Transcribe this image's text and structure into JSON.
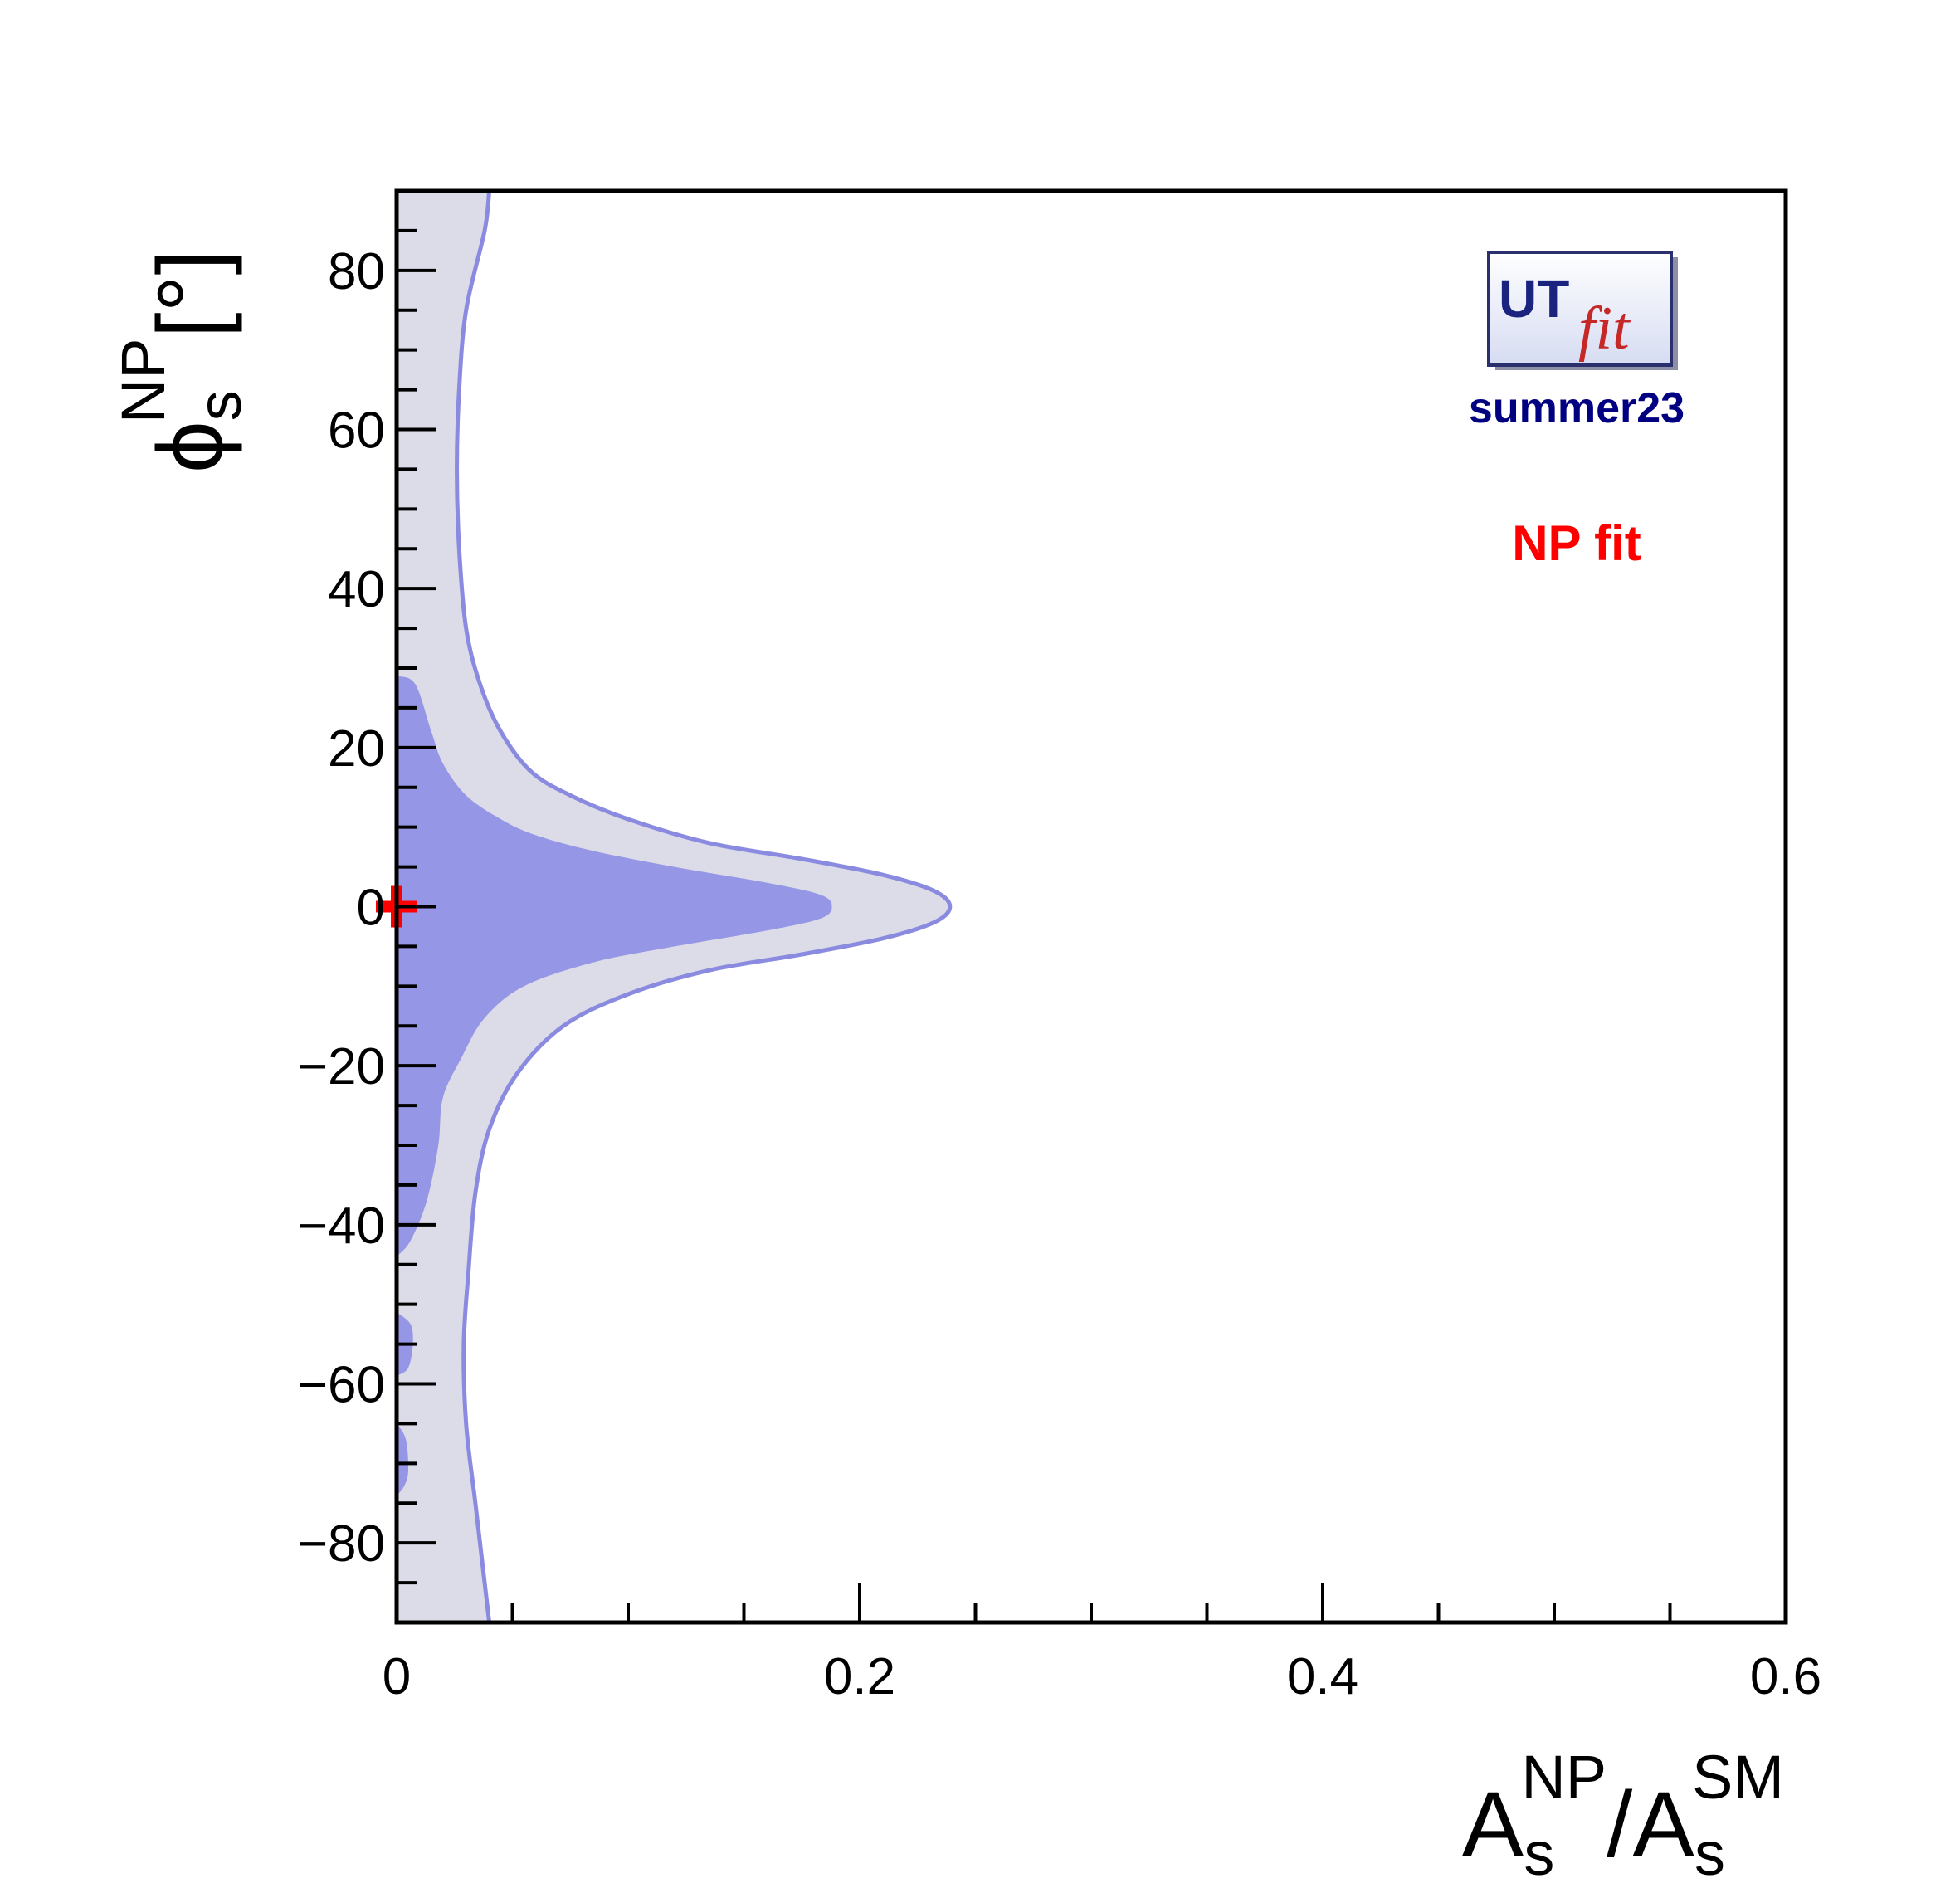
{
  "chart_data": {
    "type": "contour",
    "xlabel": {
      "base": "A",
      "sub": "s",
      "sup": "NP",
      "slash": "/",
      "base2": "A",
      "sub2": "s",
      "sup2": "SM"
    },
    "ylabel": {
      "base": "ϕ",
      "sub": "s",
      "sup": "NP",
      "unit": "[°]"
    },
    "xlim": [
      0,
      0.6
    ],
    "ylim": [
      -90,
      90
    ],
    "x_ticks": [
      0,
      0.2,
      0.4,
      0.6
    ],
    "x_tick_labels": [
      "0",
      "0.2",
      "0.4",
      "0.6"
    ],
    "y_ticks": [
      -80,
      -60,
      -40,
      -20,
      0,
      20,
      40,
      60,
      80
    ],
    "y_tick_labels": [
      "−80",
      "−60",
      "−40",
      "−20",
      "0",
      "20",
      "40",
      "60",
      "80"
    ],
    "grid": false,
    "regions": [
      {
        "level": "95%",
        "fill": "#dcdce8",
        "stroke": "#8a8ae0",
        "boundary": [
          [
            0.04,
            90
          ],
          [
            0.038,
            85
          ],
          [
            0.03,
            75
          ],
          [
            0.027,
            65
          ],
          [
            0.026,
            55
          ],
          [
            0.027,
            45
          ],
          [
            0.03,
            35
          ],
          [
            0.036,
            28
          ],
          [
            0.045,
            22
          ],
          [
            0.058,
            17
          ],
          [
            0.075,
            14
          ],
          [
            0.1,
            11
          ],
          [
            0.135,
            8
          ],
          [
            0.175,
            6
          ],
          [
            0.21,
            4
          ],
          [
            0.232,
            2
          ],
          [
            0.239,
            0
          ],
          [
            0.232,
            -2
          ],
          [
            0.21,
            -4
          ],
          [
            0.175,
            -6
          ],
          [
            0.135,
            -8
          ],
          [
            0.1,
            -11
          ],
          [
            0.072,
            -15
          ],
          [
            0.052,
            -21
          ],
          [
            0.04,
            -28
          ],
          [
            0.034,
            -36
          ],
          [
            0.031,
            -46
          ],
          [
            0.029,
            -55
          ],
          [
            0.03,
            -65
          ],
          [
            0.034,
            -75
          ],
          [
            0.038,
            -85
          ],
          [
            0.04,
            -90
          ]
        ]
      },
      {
        "level": "68%",
        "fill": "#9696e6",
        "boundary": [
          [
            0.0,
            29
          ],
          [
            0.008,
            28
          ],
          [
            0.015,
            22
          ],
          [
            0.02,
            18
          ],
          [
            0.03,
            14
          ],
          [
            0.045,
            11
          ],
          [
            0.06,
            9
          ],
          [
            0.085,
            7
          ],
          [
            0.12,
            5
          ],
          [
            0.16,
            3
          ],
          [
            0.183,
            1.5
          ],
          [
            0.188,
            0
          ],
          [
            0.183,
            -1.5
          ],
          [
            0.16,
            -3
          ],
          [
            0.12,
            -5
          ],
          [
            0.085,
            -7
          ],
          [
            0.055,
            -10
          ],
          [
            0.038,
            -14
          ],
          [
            0.028,
            -19
          ],
          [
            0.02,
            -24
          ],
          [
            0.018,
            -30
          ],
          [
            0.013,
            -37
          ],
          [
            0.006,
            -42
          ],
          [
            0.0,
            -44
          ]
        ],
        "islands": [
          [
            [
              0.0,
              -51
            ],
            [
              0.006,
              -52.5
            ],
            [
              0.007,
              -55
            ],
            [
              0.005,
              -58
            ],
            [
              0.0,
              -59
            ]
          ],
          [
            [
              0.0,
              -65
            ],
            [
              0.004,
              -67
            ],
            [
              0.005,
              -71
            ],
            [
              0.003,
              -73
            ],
            [
              0.0,
              -74
            ]
          ]
        ]
      }
    ],
    "marker": {
      "x": 0.0,
      "y": 0.0,
      "symbol": "+",
      "color": "#ff0000"
    }
  },
  "logo": {
    "ut": "UT",
    "fit": "fit",
    "version": "summer23",
    "version_color": "#000080"
  },
  "annotation": {
    "text": "NP fit",
    "color": "#ff0000"
  }
}
